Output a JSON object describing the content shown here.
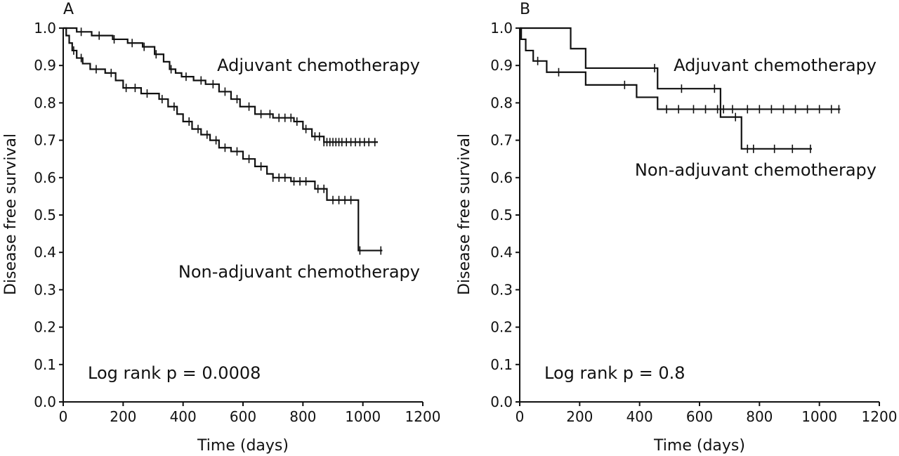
{
  "chart_data": [
    {
      "type": "line",
      "panel": "A",
      "title": "",
      "xlabel": "Time (days)",
      "ylabel": "Disease free survival",
      "xlim": [
        0,
        1200
      ],
      "ylim": [
        0.0,
        1.0
      ],
      "xticks": [
        "0",
        "200",
        "400",
        "600",
        "800",
        "1000",
        "1200"
      ],
      "yticks": [
        "0.0",
        "0.1",
        "0.2",
        "0.3",
        "0.4",
        "0.5",
        "0.6",
        "0.7",
        "0.8",
        "0.9",
        "1.0"
      ],
      "annotation": "Log rank p = 0.0008",
      "grid": false,
      "series": [
        {
          "name": "Adjuvant chemotherapy",
          "label": "Adjuvant chemotherapy",
          "step": true,
          "x": [
            0,
            45,
            95,
            165,
            215,
            265,
            305,
            335,
            355,
            375,
            395,
            435,
            475,
            520,
            560,
            590,
            640,
            700,
            770,
            800,
            830,
            870,
            1050
          ],
          "y": [
            1.0,
            0.99,
            0.98,
            0.97,
            0.96,
            0.95,
            0.93,
            0.91,
            0.89,
            0.88,
            0.87,
            0.86,
            0.85,
            0.83,
            0.81,
            0.79,
            0.77,
            0.76,
            0.75,
            0.73,
            0.71,
            0.695,
            0.695
          ],
          "censored_x": [
            60,
            120,
            170,
            230,
            270,
            310,
            360,
            410,
            460,
            500,
            540,
            580,
            620,
            660,
            690,
            720,
            740,
            760,
            780,
            810,
            840,
            855,
            870,
            880,
            890,
            900,
            910,
            920,
            930,
            945,
            960,
            975,
            990,
            1005,
            1020,
            1040
          ]
        },
        {
          "name": "Non-adjuvant chemotherapy",
          "label": "Non-adjuvant chemotherapy",
          "step": true,
          "x": [
            0,
            10,
            20,
            30,
            45,
            65,
            90,
            140,
            175,
            200,
            260,
            320,
            350,
            380,
            400,
            430,
            460,
            490,
            520,
            560,
            600,
            640,
            680,
            700,
            760,
            840,
            880,
            985,
            1065
          ],
          "y": [
            1.0,
            0.98,
            0.96,
            0.94,
            0.92,
            0.905,
            0.89,
            0.88,
            0.86,
            0.84,
            0.825,
            0.81,
            0.79,
            0.77,
            0.75,
            0.73,
            0.715,
            0.7,
            0.68,
            0.67,
            0.65,
            0.63,
            0.61,
            0.6,
            0.59,
            0.57,
            0.54,
            0.405,
            0.405
          ],
          "censored_x": [
            35,
            60,
            110,
            160,
            210,
            240,
            280,
            330,
            370,
            420,
            450,
            480,
            510,
            540,
            580,
            620,
            660,
            700,
            720,
            740,
            770,
            790,
            810,
            850,
            870,
            900,
            920,
            940,
            960,
            990,
            1060
          ]
        }
      ]
    },
    {
      "type": "line",
      "panel": "B",
      "title": "",
      "xlabel": "Time (days)",
      "ylabel": "Disease free survival",
      "xlim": [
        0,
        1200
      ],
      "ylim": [
        0.0,
        1.0
      ],
      "xticks": [
        "0",
        "200",
        "400",
        "600",
        "800",
        "1000",
        "1200"
      ],
      "yticks": [
        "0.0",
        "0.1",
        "0.2",
        "0.3",
        "0.4",
        "0.5",
        "0.6",
        "0.7",
        "0.8",
        "0.9",
        "1.0"
      ],
      "annotation": "Log rank p = 0.8",
      "grid": false,
      "series": [
        {
          "name": "Adjuvant chemotherapy",
          "label": "Adjuvant chemotherapy",
          "step": true,
          "x": [
            0,
            170,
            220,
            460,
            670,
            740,
            975
          ],
          "y": [
            1.0,
            0.945,
            0.893,
            0.838,
            0.762,
            0.677,
            0.677
          ],
          "censored_x": [
            450,
            540,
            650,
            720,
            760,
            780,
            850,
            910,
            970
          ]
        },
        {
          "name": "Non-adjuvant chemotherapy",
          "label": "Non-adjuvant chemotherapy",
          "step": true,
          "x": [
            0,
            5,
            20,
            45,
            90,
            220,
            390,
            460,
            1070
          ],
          "y": [
            1.0,
            0.97,
            0.94,
            0.912,
            0.882,
            0.848,
            0.815,
            0.783,
            0.783
          ],
          "censored_x": [
            60,
            130,
            350,
            490,
            530,
            580,
            620,
            660,
            680,
            710,
            760,
            800,
            840,
            880,
            920,
            960,
            1000,
            1040,
            1065
          ]
        }
      ]
    }
  ]
}
